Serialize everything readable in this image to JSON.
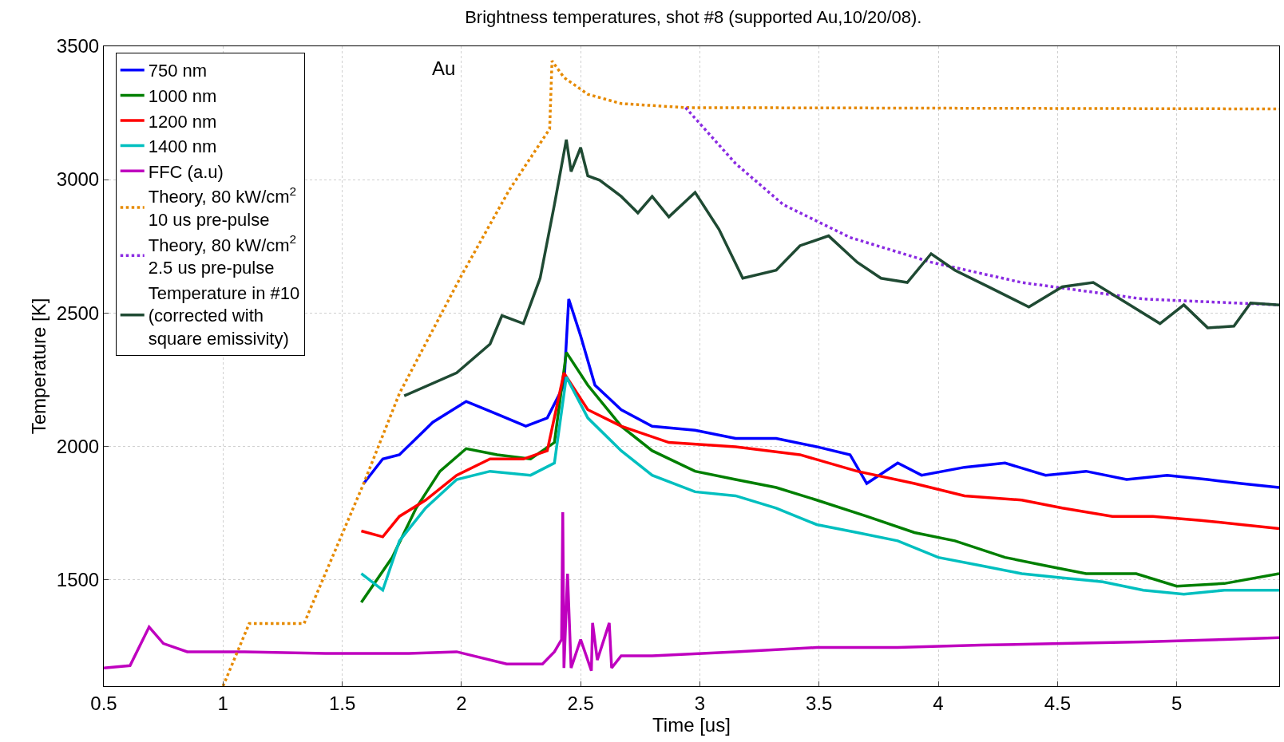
{
  "chart_data": {
    "type": "line",
    "title": "Brightness temperatures, shot #8 (supported Au,10/20/08).",
    "xlabel": "Time [us]",
    "ylabel": "Temperature [K]",
    "xlim": [
      0.5,
      5.43
    ],
    "ylim": [
      1100,
      3500
    ],
    "xticks": [
      0.5,
      1,
      1.5,
      2,
      2.5,
      3,
      3.5,
      4,
      4.5,
      5
    ],
    "yticks": [
      1500,
      2000,
      2500,
      3000,
      3500
    ],
    "grid": true,
    "legend": "top left",
    "annotations": [
      "Au"
    ],
    "series": [
      {
        "name": "750 nm",
        "color": "#0000ff",
        "x": [
          1.59,
          1.67,
          1.74,
          1.88,
          2.02,
          2.15,
          2.27,
          2.36,
          2.43,
          2.45,
          2.5,
          2.56,
          2.67,
          2.8,
          2.98,
          3.15,
          3.32,
          3.49,
          3.63,
          3.7,
          3.83,
          3.93,
          4.11,
          4.28,
          4.45,
          4.62,
          4.79,
          4.96,
          5.13,
          5.27,
          5.43
        ],
        "values": [
          1860,
          1952,
          1968,
          2090,
          2168,
          2120,
          2075,
          2106,
          2229,
          2552,
          2414,
          2229,
          2137,
          2075,
          2060,
          2029,
          2029,
          1998,
          1968,
          1860,
          1937,
          1891,
          1921,
          1937,
          1891,
          1906,
          1875,
          1891,
          1875,
          1860,
          1845
        ]
      },
      {
        "name": "1000 nm",
        "color": "#007f00",
        "x": [
          1.58,
          1.71,
          1.81,
          1.91,
          2.02,
          2.15,
          2.29,
          2.39,
          2.44,
          2.53,
          2.67,
          2.8,
          2.98,
          3.15,
          3.32,
          3.49,
          3.7,
          3.9,
          4.07,
          4.28,
          4.45,
          4.62,
          4.83,
          5.0,
          5.2,
          5.43
        ],
        "values": [
          1414,
          1583,
          1768,
          1906,
          1991,
          1968,
          1952,
          2014,
          2352,
          2229,
          2075,
          1983,
          1906,
          1875,
          1845,
          1798,
          1737,
          1676,
          1645,
          1583,
          1552,
          1522,
          1522,
          1475,
          1485,
          1522
        ]
      },
      {
        "name": "1200 nm",
        "color": "#ff0000",
        "x": [
          1.58,
          1.67,
          1.74,
          1.85,
          1.98,
          2.12,
          2.26,
          2.36,
          2.43,
          2.53,
          2.67,
          2.87,
          3.15,
          3.42,
          3.66,
          3.9,
          4.11,
          4.35,
          4.52,
          4.73,
          4.9,
          5.1,
          5.27,
          5.43
        ],
        "values": [
          1682,
          1660,
          1737,
          1798,
          1891,
          1952,
          1952,
          1983,
          2275,
          2137,
          2075,
          2014,
          1998,
          1968,
          1906,
          1860,
          1814,
          1798,
          1768,
          1737,
          1737,
          1722,
          1706,
          1691
        ]
      },
      {
        "name": "1400 nm",
        "color": "#00bfbf",
        "x": [
          1.58,
          1.67,
          1.74,
          1.85,
          1.98,
          2.12,
          2.29,
          2.39,
          2.44,
          2.53,
          2.67,
          2.8,
          2.98,
          3.15,
          3.32,
          3.49,
          3.66,
          3.83,
          4.0,
          4.18,
          4.35,
          4.52,
          4.69,
          4.86,
          5.03,
          5.2,
          5.43
        ],
        "values": [
          1522,
          1460,
          1645,
          1768,
          1875,
          1906,
          1891,
          1937,
          2260,
          2106,
          1983,
          1891,
          1829,
          1814,
          1768,
          1706,
          1676,
          1645,
          1583,
          1552,
          1522,
          1506,
          1491,
          1460,
          1445,
          1460,
          1460
        ]
      },
      {
        "name": "FFC (a.u)",
        "color": "#bf00bf",
        "x": [
          0.5,
          0.61,
          0.69,
          0.75,
          0.85,
          1.09,
          1.43,
          1.78,
          1.98,
          2.19,
          2.34,
          2.39,
          2.42,
          2.425,
          2.43,
          2.445,
          2.46,
          2.5,
          2.545,
          2.55,
          2.57,
          2.62,
          2.63,
          2.67,
          2.8,
          3.15,
          3.49,
          3.83,
          4.18,
          4.52,
          4.86,
          5.2,
          5.43
        ],
        "values": [
          1168,
          1177,
          1322,
          1260,
          1229,
          1229,
          1223,
          1223,
          1229,
          1183,
          1183,
          1229,
          1275,
          1752,
          1168,
          1522,
          1168,
          1275,
          1158,
          1337,
          1198,
          1337,
          1168,
          1214,
          1214,
          1229,
          1245,
          1245,
          1254,
          1260,
          1266,
          1275,
          1282
        ]
      },
      {
        "name": "Theory, 80 kW/cm$^{2}$\n10 us pre-pulse",
        "color": "#e68a00",
        "line_style": "dotted",
        "x": [
          1.0,
          1.11,
          1.34,
          1.59,
          1.74,
          2.0,
          2.2,
          2.37,
          2.38,
          2.43,
          2.53,
          2.67,
          2.94,
          5.43
        ],
        "values": [
          1100,
          1335,
          1335,
          1860,
          2198,
          2640,
          2960,
          3190,
          3445,
          3383,
          3320,
          3285,
          3270,
          3265
        ]
      },
      {
        "name": "Theory, 80 kW/cm$^{2}$\n2.5 us pre-pulse",
        "color": "#8a2be2",
        "line_style": "dotted",
        "x": [
          2.94,
          3.15,
          3.35,
          3.63,
          3.97,
          4.35,
          4.86,
          5.43
        ],
        "values": [
          3270,
          3060,
          2906,
          2783,
          2690,
          2614,
          2552,
          2530
        ]
      },
      {
        "name": "Temperature in #10\n(corrected with\nsquare emissivity)",
        "color": "#1f4a33",
        "x": [
          1.76,
          1.98,
          2.12,
          2.17,
          2.26,
          2.33,
          2.39,
          2.44,
          2.46,
          2.5,
          2.53,
          2.58,
          2.67,
          2.74,
          2.8,
          2.87,
          2.98,
          3.08,
          3.18,
          3.32,
          3.42,
          3.54,
          3.66,
          3.76,
          3.87,
          3.97,
          4.07,
          4.21,
          4.38,
          4.52,
          4.65,
          4.79,
          4.93,
          5.03,
          5.13,
          5.24,
          5.31,
          5.43
        ],
        "values": [
          2189,
          2275,
          2383,
          2490,
          2460,
          2630,
          2906,
          3150,
          3030,
          3120,
          3014,
          2998,
          2937,
          2875,
          2937,
          2860,
          2952,
          2814,
          2630,
          2660,
          2752,
          2789,
          2690,
          2630,
          2614,
          2722,
          2660,
          2598,
          2522,
          2598,
          2614,
          2537,
          2460,
          2530,
          2444,
          2450,
          2537,
          2530
        ]
      }
    ]
  }
}
